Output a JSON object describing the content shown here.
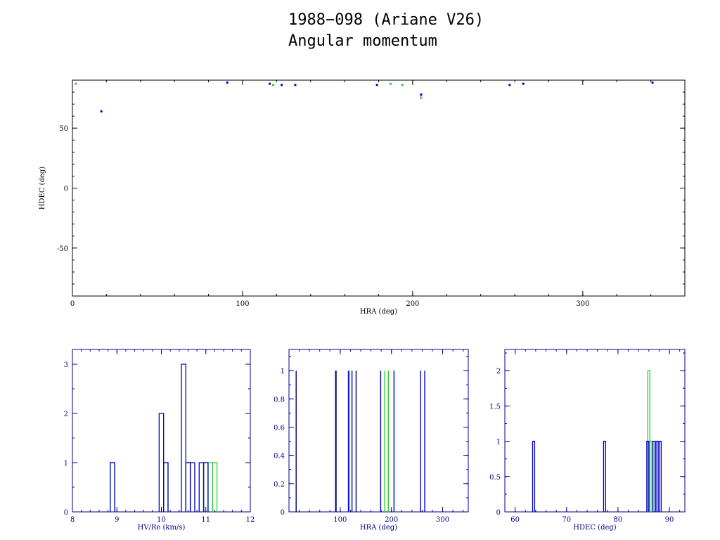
{
  "title": "1988−098 (Ariane V26)",
  "subtitle": "Angular momentum",
  "colors": {
    "primary": "#0000cc",
    "secondary": "#33cc33",
    "dark": "#000066",
    "axis": "#000000"
  },
  "chart_data": [
    {
      "type": "scatter",
      "xlabel": "HRA (deg)",
      "ylabel": "HDEC (deg)",
      "xlim": [
        0,
        360
      ],
      "ylim": [
        -90,
        90
      ],
      "xticks": [
        0,
        100,
        200,
        300
      ],
      "yticks": [
        -50,
        0,
        50
      ],
      "series": [
        {
          "color": "#0000cc",
          "points": [
            [
              17,
              64
            ],
            [
              91,
              88
            ],
            [
              116,
              87
            ],
            [
              123,
              86
            ],
            [
              131,
              86
            ],
            [
              179,
              86
            ],
            [
              205,
              78
            ],
            [
              257,
              86
            ],
            [
              265,
              87
            ],
            [
              341,
              88
            ]
          ]
        },
        {
          "color": "#33cc33",
          "points": [
            [
              2,
              87
            ],
            [
              118,
              86
            ],
            [
              187,
              87
            ],
            [
              194,
              86
            ]
          ]
        }
      ],
      "annotations": [
        {
          "x": 205,
          "y": 76,
          "text": "b"
        }
      ]
    },
    {
      "type": "bar",
      "xlabel": "HV/Re (km/s)",
      "ylabel": "",
      "xlim": [
        8,
        12
      ],
      "ylim": [
        0,
        3.3
      ],
      "xticks": [
        8,
        9,
        10,
        11,
        12
      ],
      "yticks": [
        0,
        1,
        2,
        3
      ],
      "bin_width": 0.1,
      "series": [
        {
          "color": "#33cc33",
          "bins": [
            [
              8.85,
              1
            ],
            [
              10.05,
              1
            ],
            [
              10.55,
              1
            ],
            [
              10.95,
              1
            ],
            [
              11.05,
              1
            ],
            [
              11.15,
              1
            ]
          ]
        },
        {
          "color": "#0000cc",
          "bins": [
            [
              8.85,
              1
            ],
            [
              9.95,
              2
            ],
            [
              10.05,
              1
            ],
            [
              10.45,
              3
            ],
            [
              10.55,
              1
            ],
            [
              10.65,
              1
            ],
            [
              10.85,
              1
            ],
            [
              10.95,
              1
            ]
          ]
        }
      ]
    },
    {
      "type": "bar",
      "xlabel": "HRA (deg)",
      "ylabel": "",
      "xlim": [
        0,
        350
      ],
      "ylim": [
        0,
        1.15
      ],
      "xticks": [
        100,
        200,
        300
      ],
      "yticks": [
        0,
        0.2,
        0.4,
        0.6,
        0.8,
        1
      ],
      "lines": [
        {
          "color": "#33cc33",
          "values": [
            118,
            187,
            194
          ]
        },
        {
          "color": "#0000cc",
          "values": [
            91,
            116,
            123,
            179,
            205,
            257,
            265
          ]
        },
        {
          "color": "#000066",
          "values": [
            14,
            92,
            131
          ]
        }
      ]
    },
    {
      "type": "bar",
      "xlabel": "HDEC (deg)",
      "ylabel": "",
      "xlim": [
        58,
        93
      ],
      "ylim": [
        0,
        2.3
      ],
      "xticks": [
        60,
        70,
        80,
        90
      ],
      "yticks": [
        0,
        0.5,
        1,
        1.5,
        2
      ],
      "bin_width": 0.4,
      "series": [
        {
          "color": "#33cc33",
          "bins": [
            [
              85.8,
              2
            ],
            [
              86.2,
              1
            ]
          ]
        },
        {
          "color": "#0000cc",
          "bins": [
            [
              63.4,
              1
            ],
            [
              77.2,
              1
            ],
            [
              85.6,
              1
            ],
            [
              86.8,
              1
            ],
            [
              87.4,
              1
            ],
            [
              88.0,
              1
            ]
          ]
        }
      ]
    }
  ]
}
